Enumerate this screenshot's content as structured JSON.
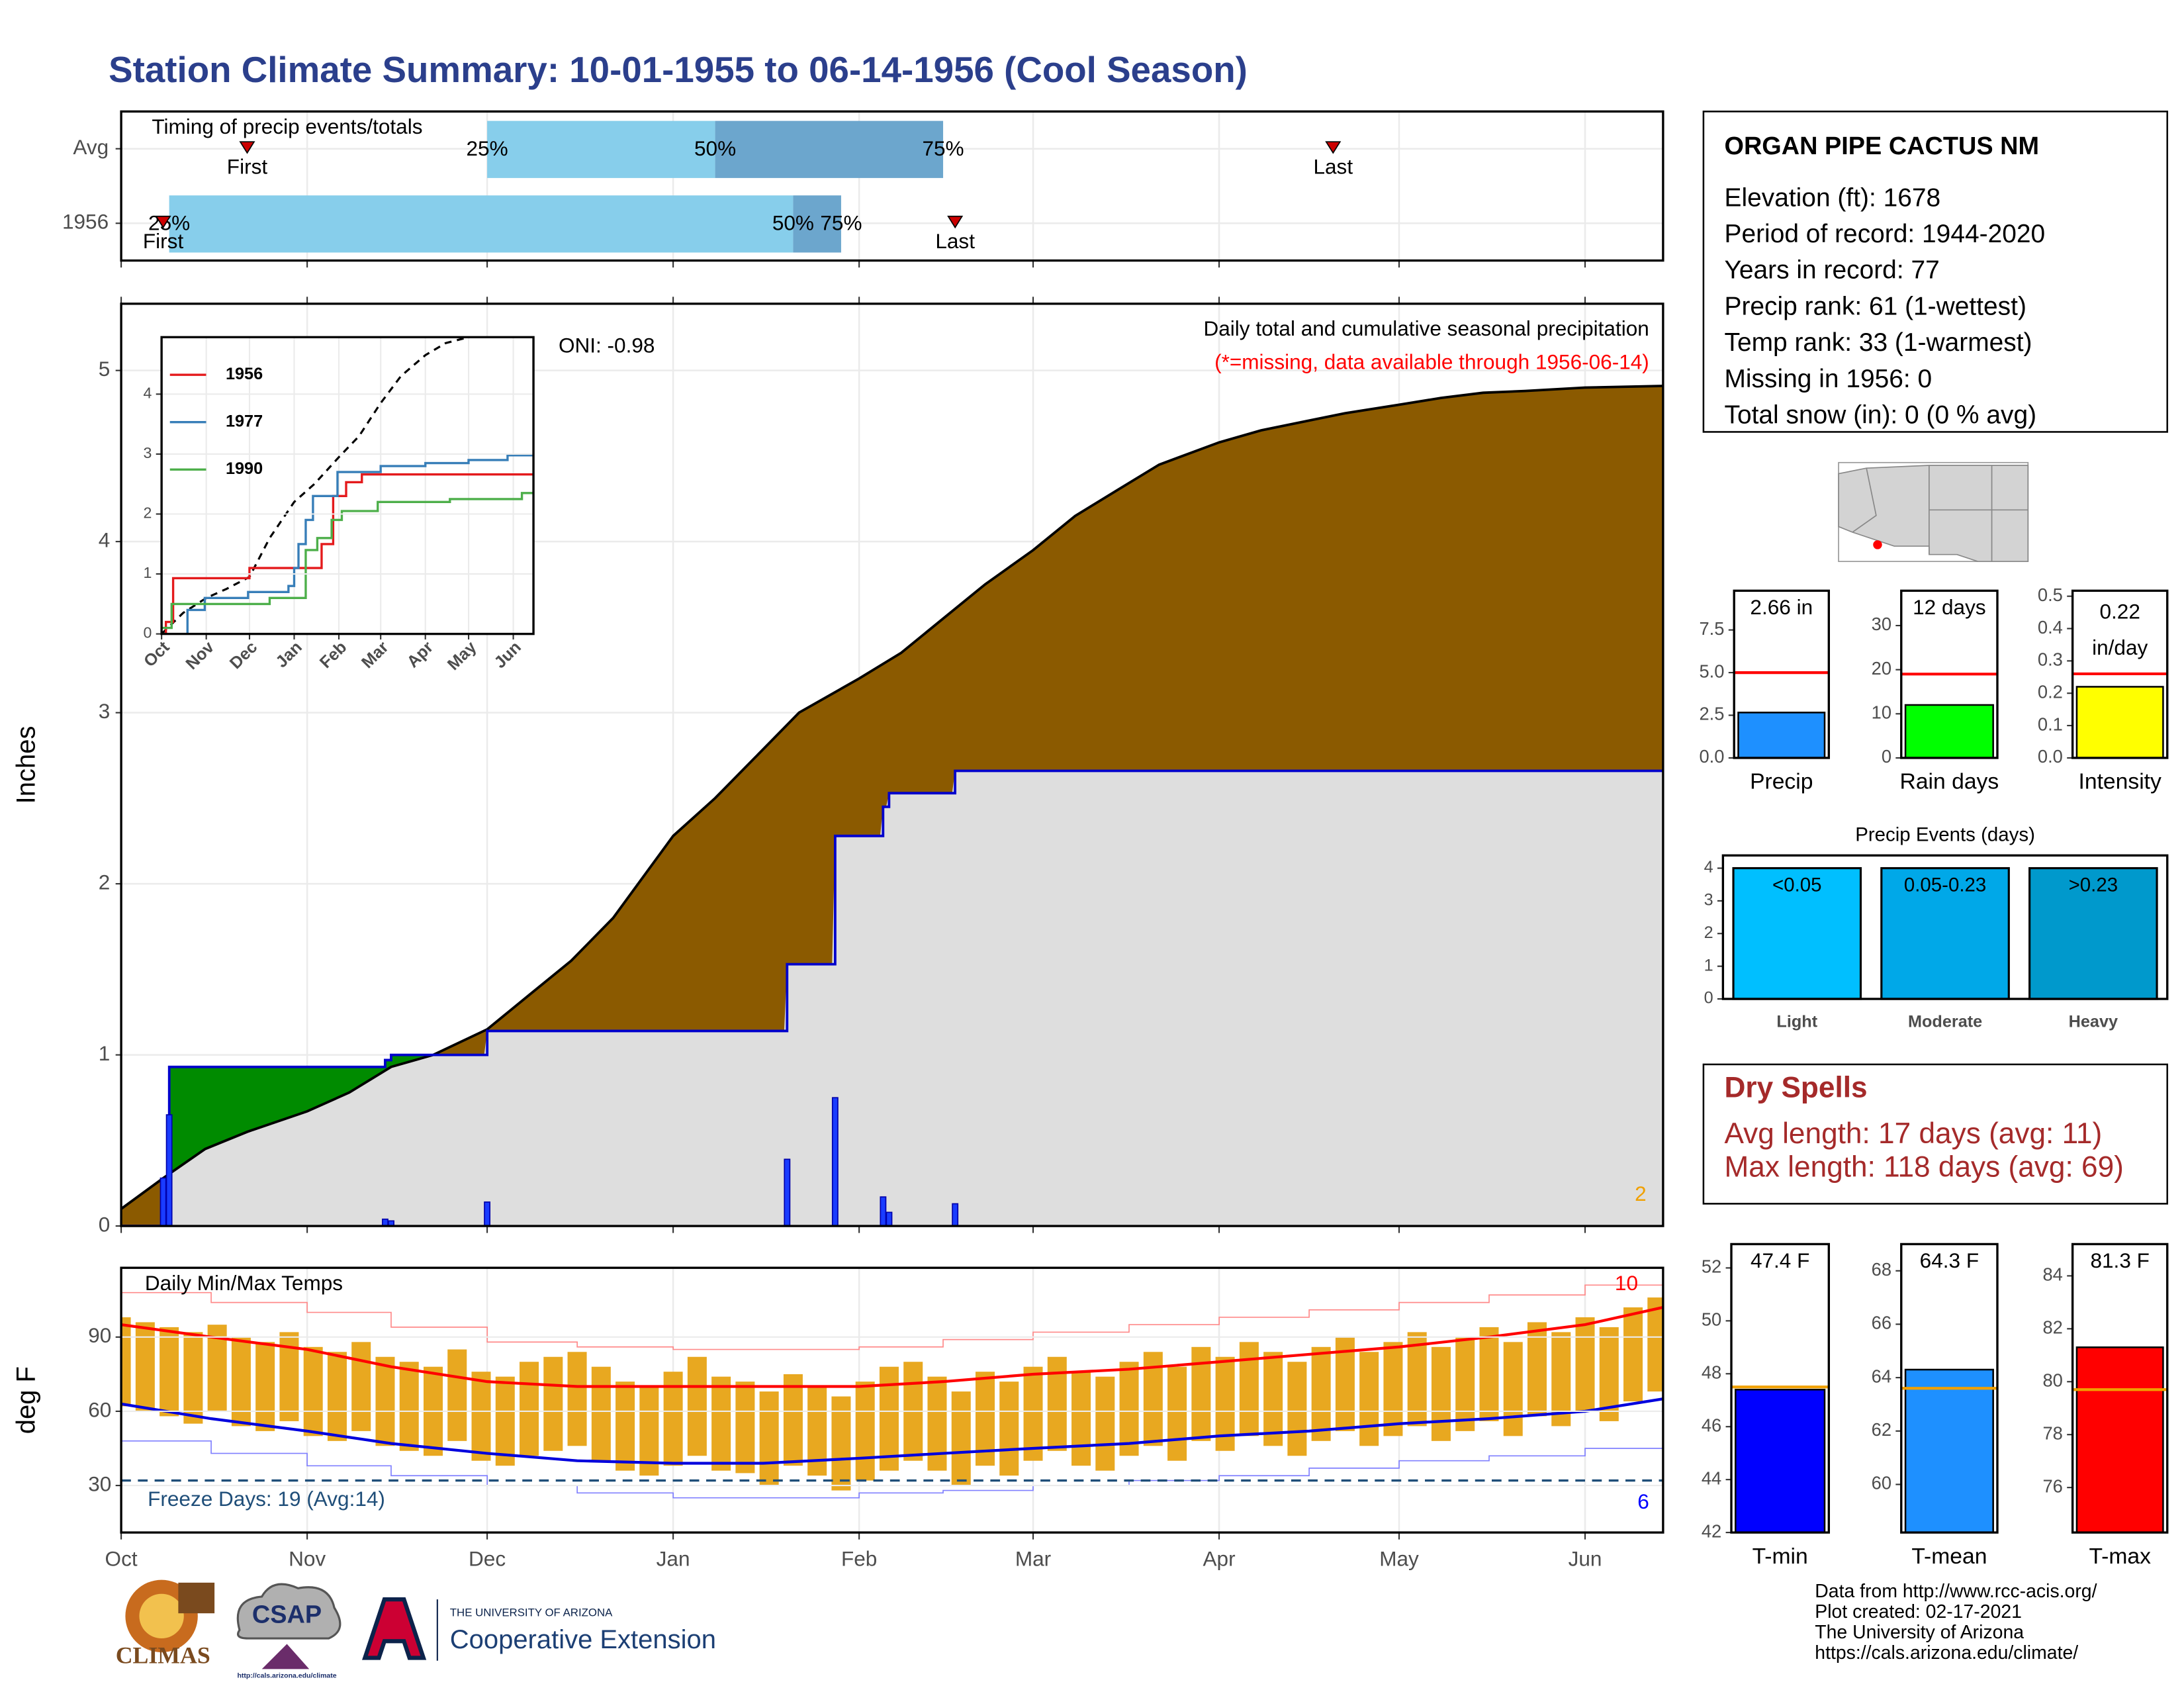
{
  "title": "Station Climate Summary: 10-01-1955 to 06-14-1956 (Cool Season)",
  "chart_data": [
    {
      "type": "timeline",
      "title": "Timing of precip events/totals",
      "categories": [
        "Avg",
        "1956"
      ],
      "first": [
        21,
        7
      ],
      "q25": [
        61,
        8
      ],
      "q50": [
        99,
        112
      ],
      "q75": [
        137,
        120
      ],
      "last": [
        202,
        139
      ],
      "first_label": "First",
      "last_label": "Last",
      "q25_label": "25%",
      "q50_label": "50%",
      "q75_label": "75%",
      "colors": {
        "early": "#87ceeb",
        "late": "#6ca6cd",
        "marker": "#cc0000"
      },
      "xlim": [
        0,
        257
      ],
      "grid": true
    },
    {
      "type": "area",
      "title": "Daily total and cumulative seasonal precipitation",
      "subtitle": "(*=missing, data available through 1956-06-14)",
      "annotation": "ONI: -0.98",
      "corner_note": "2",
      "ylabel": "Inches",
      "xlim": [
        0,
        257
      ],
      "ylim": [
        0,
        5.39
      ],
      "yticks": [
        0,
        1,
        2,
        3,
        4,
        5
      ],
      "grid": true,
      "average_cumulative": {
        "color": "#8b5a00",
        "x": [
          0,
          7,
          14,
          21,
          31,
          38,
          45,
          52,
          61,
          68,
          75,
          82,
          92,
          99,
          106,
          113,
          123,
          130,
          137,
          144,
          152,
          159,
          166,
          173,
          183,
          190,
          197,
          204,
          213,
          220,
          227,
          234,
          244,
          257
        ],
        "values": [
          0.1,
          0.28,
          0.45,
          0.55,
          0.67,
          0.78,
          0.93,
          1.0,
          1.15,
          1.35,
          1.55,
          1.8,
          2.28,
          2.5,
          2.75,
          3.0,
          3.2,
          3.35,
          3.55,
          3.75,
          3.95,
          4.15,
          4.3,
          4.45,
          4.58,
          4.65,
          4.7,
          4.75,
          4.8,
          4.84,
          4.87,
          4.88,
          4.9,
          4.91
        ]
      },
      "observed_cumulative": {
        "color": "#0000cc",
        "above_color": "#008b00",
        "below_color": "#dedede",
        "x": [
          0,
          8,
          44,
          45,
          61,
          111,
          119,
          127,
          128,
          139
        ],
        "values": [
          0,
          0.93,
          0.97,
          1.0,
          1.14,
          1.53,
          2.28,
          2.45,
          2.53,
          2.66
        ]
      },
      "daily": {
        "color": "#1a3cff",
        "x": [
          7,
          8,
          44,
          45,
          61,
          111,
          119,
          127,
          128,
          139
        ],
        "values": [
          0.28,
          0.65,
          0.04,
          0.03,
          0.14,
          0.39,
          0.75,
          0.17,
          0.08,
          0.13
        ]
      }
    },
    {
      "type": "line",
      "xlim": [
        0,
        258
      ],
      "ylim": [
        0,
        4.95
      ],
      "yticks": [
        0,
        1,
        2,
        3,
        4
      ],
      "xticks": [
        {
          "value": 0,
          "label": "Oct"
        },
        {
          "value": 31,
          "label": "Nov"
        },
        {
          "value": 61,
          "label": "Dec"
        },
        {
          "value": 92,
          "label": "Jan"
        },
        {
          "value": 123,
          "label": "Feb"
        },
        {
          "value": 152,
          "label": "Mar"
        },
        {
          "value": 183,
          "label": "Apr"
        },
        {
          "value": 213,
          "label": "May"
        },
        {
          "value": 244,
          "label": "Jun"
        }
      ],
      "series": [
        {
          "name": "1956",
          "color": "#e41a1c",
          "x": [
            0,
            3,
            8,
            61,
            111,
            119,
            128,
            139
          ],
          "values": [
            0,
            0.2,
            0.93,
            1.1,
            1.5,
            2.3,
            2.53,
            2.66
          ]
        },
        {
          "name": "1977",
          "color": "#377eb8",
          "x": [
            0,
            18,
            30,
            60,
            88,
            92,
            95,
            100,
            105,
            122,
            152,
            183,
            213,
            240
          ],
          "values": [
            0,
            0.4,
            0.6,
            0.7,
            0.8,
            1.1,
            1.5,
            1.9,
            2.3,
            2.7,
            2.8,
            2.85,
            2.9,
            2.98
          ]
        },
        {
          "name": "1990",
          "color": "#4daf4a",
          "x": [
            0,
            7,
            60,
            75,
            100,
            108,
            118,
            125,
            150,
            200,
            250
          ],
          "values": [
            0.1,
            0.5,
            0.5,
            0.6,
            1.4,
            1.6,
            1.9,
            2.05,
            2.2,
            2.25,
            2.35
          ]
        }
      ],
      "average": {
        "color": "#000000",
        "x": [
          0,
          15,
          31,
          45,
          61,
          75,
          92,
          106,
          123,
          137,
          152,
          166,
          183,
          197,
          213
        ],
        "values": [
          0,
          0.35,
          0.6,
          0.75,
          0.95,
          1.6,
          2.2,
          2.5,
          2.95,
          3.3,
          3.85,
          4.3,
          4.65,
          4.85,
          4.95
        ]
      }
    },
    {
      "type": "range",
      "title": "Daily Min/Max Temps",
      "annotation": "Freeze Days: 19 (Avg:14)",
      "ylabel": "deg F",
      "max_note": "10",
      "min_note": "6",
      "freeze_line": 32,
      "xlim": [
        0,
        257
      ],
      "ylim": [
        11,
        118
      ],
      "yticks": [
        30,
        60,
        90
      ],
      "grid": true,
      "xticks": [
        {
          "value": 0,
          "label": "Oct"
        },
        {
          "value": 31,
          "label": "Nov"
        },
        {
          "value": 61,
          "label": "Dec"
        },
        {
          "value": 92,
          "label": "Jan"
        },
        {
          "value": 123,
          "label": "Feb"
        },
        {
          "value": 152,
          "label": "Mar"
        },
        {
          "value": 183,
          "label": "Apr"
        },
        {
          "value": 213,
          "label": "May"
        },
        {
          "value": 244,
          "label": "Jun"
        }
      ],
      "daily": {
        "color": "#e8a820",
        "x": [
          0,
          4,
          8,
          12,
          16,
          20,
          24,
          28,
          32,
          36,
          40,
          44,
          48,
          52,
          56,
          60,
          64,
          68,
          72,
          76,
          80,
          84,
          88,
          92,
          96,
          100,
          104,
          108,
          112,
          116,
          120,
          124,
          128,
          132,
          136,
          140,
          144,
          148,
          152,
          156,
          160,
          164,
          168,
          172,
          176,
          180,
          184,
          188,
          192,
          196,
          200,
          204,
          208,
          212,
          216,
          220,
          224,
          228,
          232,
          236,
          240,
          244,
          248,
          252,
          256
        ],
        "max": [
          98,
          96,
          94,
          92,
          95,
          90,
          88,
          92,
          86,
          84,
          88,
          82,
          80,
          78,
          85,
          76,
          74,
          80,
          82,
          84,
          78,
          72,
          70,
          76,
          82,
          74,
          72,
          68,
          75,
          70,
          66,
          72,
          78,
          80,
          74,
          68,
          76,
          72,
          78,
          82,
          76,
          74,
          80,
          84,
          78,
          86,
          82,
          88,
          84,
          80,
          86,
          90,
          84,
          88,
          92,
          86,
          90,
          94,
          88,
          96,
          92,
          98,
          94,
          102,
          106
        ],
        "min": [
          62,
          60,
          58,
          55,
          60,
          54,
          52,
          56,
          50,
          48,
          52,
          46,
          44,
          42,
          48,
          40,
          38,
          42,
          44,
          46,
          40,
          36,
          34,
          38,
          42,
          36,
          35,
          30,
          38,
          34,
          28,
          32,
          36,
          40,
          36,
          30,
          38,
          34,
          40,
          44,
          38,
          36,
          42,
          46,
          40,
          48,
          44,
          50,
          46,
          42,
          48,
          52,
          46,
          50,
          54,
          48,
          52,
          56,
          50,
          58,
          54,
          60,
          56,
          64,
          68
        ]
      },
      "lines_x": [
        0,
        15,
        31,
        45,
        61,
        76,
        92,
        107,
        123,
        137,
        152,
        168,
        183,
        198,
        213,
        228,
        244,
        257
      ],
      "avg_max": {
        "color": "#ff0000",
        "values": [
          95,
          90,
          85,
          78,
          72,
          70,
          70,
          70,
          70,
          72,
          75,
          77,
          80,
          83,
          86,
          90,
          95,
          102
        ]
      },
      "avg_min": {
        "color": "#0000dd",
        "values": [
          63,
          57,
          52,
          47,
          43,
          40,
          39,
          39,
          41,
          43,
          45,
          47,
          50,
          52,
          55,
          57,
          60,
          65
        ]
      },
      "record_max": {
        "color": "#ff8a8a",
        "values": [
          108,
          104,
          100,
          94,
          88,
          86,
          85,
          85,
          86,
          89,
          92,
          95,
          98,
          101,
          104,
          107,
          111,
          115
        ]
      },
      "record_min": {
        "color": "#8080ff",
        "values": [
          48,
          43,
          38,
          34,
          30,
          27,
          25,
          25,
          27,
          28,
          30,
          32,
          34,
          37,
          40,
          42,
          45,
          52
        ]
      }
    },
    {
      "type": "bar",
      "categories": [
        "Precip"
      ],
      "values": [
        2.66
      ],
      "value_labels": [
        "2.66 in"
      ],
      "average": 5.0,
      "color": "#1e90ff",
      "average_color": "#ff0000",
      "ylim": [
        0,
        9.8
      ],
      "yticks": [
        {
          "value": 0,
          "label": "0.0"
        },
        2.5,
        {
          "value": 5,
          "label": "5.0"
        },
        7.5
      ]
    },
    {
      "type": "bar",
      "categories": [
        "Rain days"
      ],
      "values": [
        12
      ],
      "value_labels": [
        "12 days"
      ],
      "average": 19,
      "color": "#00ff00",
      "average_color": "#ff0000",
      "ylim": [
        0,
        37.9
      ],
      "yticks": [
        0,
        10,
        20,
        30
      ]
    },
    {
      "type": "bar",
      "categories": [
        "Intensity"
      ],
      "values": [
        0.22
      ],
      "unit_label": "in/day",
      "average": 0.26,
      "color": "#ffff00",
      "average_color": "#ff0000",
      "ylim": [
        0,
        0.517
      ],
      "yticks": [
        {
          "value": 0,
          "label": "0.0"
        },
        0.1,
        0.2,
        0.3,
        0.4,
        0.5
      ]
    },
    {
      "type": "bar",
      "title": "Precip Events (days)",
      "categories": [
        "Light",
        "Moderate",
        "Heavy"
      ],
      "bin_labels": [
        "<0.05",
        "0.05-0.23",
        ">0.23"
      ],
      "values": [
        4,
        4,
        4
      ],
      "colors": [
        "#00bfff",
        "#00a8e8",
        "#0099cc"
      ],
      "ylim": [
        0,
        4.39
      ],
      "yticks": [
        0,
        1,
        2,
        3,
        4
      ]
    },
    {
      "type": "bar",
      "categories": [
        "T-min"
      ],
      "values": [
        47.4
      ],
      "value_labels": [
        "47.4 F"
      ],
      "average": 47.5,
      "color": "#0000ff",
      "average_color": "#f0a000",
      "ylim": [
        42,
        52.9
      ],
      "yticks": [
        42,
        44,
        46,
        48,
        50,
        52
      ]
    },
    {
      "type": "bar",
      "categories": [
        "T-mean"
      ],
      "values": [
        64.3
      ],
      "value_labels": [
        "64.3 F"
      ],
      "average": 63.6,
      "color": "#1e90ff",
      "average_color": "#f0a000",
      "ylim": [
        58.2,
        69.0
      ],
      "yticks": [
        60,
        62,
        64,
        66,
        68
      ]
    },
    {
      "type": "bar",
      "categories": [
        "T-max"
      ],
      "values": [
        81.3
      ],
      "value_labels": [
        "81.3 F"
      ],
      "average": 79.7,
      "color": "#ff0000",
      "average_color": "#f0a000",
      "ylim": [
        74.3,
        85.2
      ],
      "yticks": [
        76,
        78,
        80,
        82,
        84
      ]
    }
  ],
  "station": {
    "name": "ORGAN PIPE CACTUS NM",
    "lines": [
      "Elevation (ft): 1678",
      "Period of record: 1944-2020",
      "Years in record: 77",
      "Precip rank: 61 (1-wettest)",
      "Temp rank: 33 (1-warmest)",
      "Missing in 1956: 0",
      "Total snow (in): 0 (0 % avg)"
    ]
  },
  "dry_spells": {
    "title": "Dry Spells",
    "lines": [
      "Avg length: 17 days (avg: 11)",
      "Max length: 118 days (avg: 69)"
    ]
  },
  "credits": [
    "Data from http://www.rcc-acis.org/",
    "Plot created: 02-17-2021",
    "The University of Arizona",
    "https://cals.arizona.edu/climate/"
  ],
  "logos": {
    "climas": "CLIMAS",
    "csap": "CSAP",
    "csap_url": "http://cals.arizona.edu/climate",
    "ua": "THE UNIVERSITY OF ARIZONA",
    "extension": "Cooperative Extension"
  }
}
